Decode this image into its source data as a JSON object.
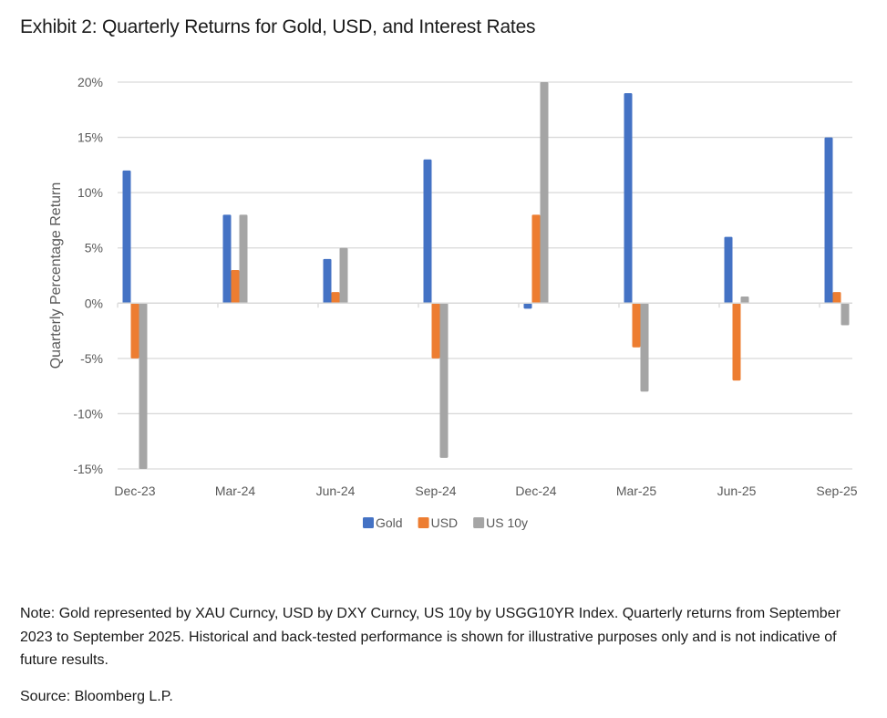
{
  "header": {
    "title": "Exhibit 2: Quarterly Returns for Gold, USD, and Interest Rates"
  },
  "chart_data": {
    "type": "bar",
    "title": "Exhibit 2: Quarterly Returns for Gold, USD, and Interest Rates",
    "xlabel": "",
    "ylabel": "Quarterly Percentage Return",
    "categories": [
      "Dec-23",
      "Mar-24",
      "Jun-24",
      "Sep-24",
      "Dec-24",
      "Mar-25",
      "Jun-25",
      "Sep-25"
    ],
    "series": [
      {
        "name": "Gold",
        "color": "#4472C4",
        "values": [
          12,
          8,
          4,
          13,
          -0.5,
          19,
          6,
          15
        ]
      },
      {
        "name": "USD",
        "color": "#ED7D31",
        "values": [
          -5,
          3,
          1,
          -5,
          8,
          -4,
          -7,
          1
        ]
      },
      {
        "name": "US 10y",
        "color": "#A5A5A5",
        "values": [
          -15,
          8,
          5,
          -14,
          20,
          -8,
          0.6,
          -2
        ]
      }
    ],
    "ylim": [
      -15,
      20
    ],
    "yticks": [
      20,
      15,
      10,
      5,
      0,
      -5,
      -10,
      -15
    ],
    "ytick_labels": [
      "20%",
      "15%",
      "10%",
      "5%",
      "0%",
      "-5%",
      "-10%",
      "-15%"
    ],
    "grid": true,
    "legend": {
      "position": "bottom-center",
      "entries": [
        "Gold",
        "USD",
        "US 10y"
      ]
    },
    "notes": "Dec-23 US 10y and Dec-24 US 10y bars are clipped at axis limits"
  },
  "footer": {
    "note": "Note: Gold represented by XAU Curncy, USD by DXY Curncy, US 10y by USGG10YR Index. Quarterly returns from September 2023 to September 2025. Historical and back-tested performance is shown for illustrative purposes only and is not indicative of future results.",
    "source": "Source: Bloomberg L.P."
  }
}
